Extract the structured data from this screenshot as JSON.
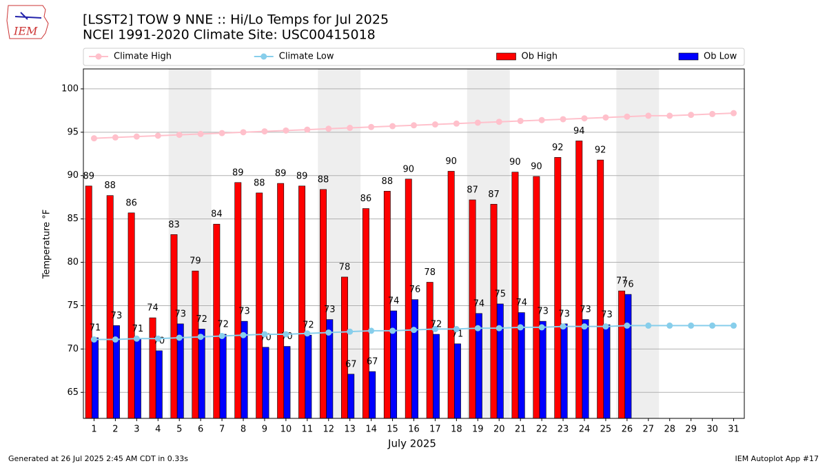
{
  "chart_data": {
    "type": "bar",
    "title": "[LSST2] TOW 9 NNE :: Hi/Lo Temps for Jul 2025",
    "subtitle": "NCEI 1991-2020 Climate Site: USC00415018",
    "logo": "IEM",
    "x_label": "July 2025",
    "y_label": "Temperature °F",
    "footer_left": "Generated at 26 Jul 2025 2:45 AM CDT in 0.33s",
    "footer_right": "IEM Autoplot App #17",
    "x": [
      1,
      2,
      3,
      4,
      5,
      6,
      7,
      8,
      9,
      10,
      11,
      12,
      13,
      14,
      15,
      16,
      17,
      18,
      19,
      20,
      21,
      22,
      23,
      24,
      25,
      26,
      27,
      28,
      29,
      30,
      31
    ],
    "xlim": [
      0.5,
      31.5
    ],
    "xticks": [
      1,
      2,
      3,
      4,
      5,
      6,
      7,
      8,
      9,
      10,
      11,
      12,
      13,
      14,
      15,
      16,
      17,
      18,
      19,
      20,
      21,
      22,
      23,
      24,
      25,
      26,
      27,
      28,
      29,
      30,
      31
    ],
    "ylim": [
      62,
      102.3
    ],
    "yticks": [
      65,
      70,
      75,
      80,
      85,
      90,
      95,
      100
    ],
    "grid": true,
    "legend": "top",
    "shaded_spans": [
      [
        5,
        6
      ],
      [
        12,
        13
      ],
      [
        19,
        20
      ],
      [
        26,
        27
      ]
    ],
    "series": [
      {
        "name": "Climate High",
        "type": "line",
        "color": "#ffc0cb",
        "values": [
          94.3,
          94.4,
          94.5,
          94.6,
          94.7,
          94.8,
          94.9,
          95.0,
          95.1,
          95.2,
          95.3,
          95.4,
          95.5,
          95.6,
          95.7,
          95.8,
          95.9,
          96.0,
          96.1,
          96.2,
          96.3,
          96.4,
          96.5,
          96.6,
          96.7,
          96.8,
          96.9,
          96.9,
          97.0,
          97.1,
          97.2
        ]
      },
      {
        "name": "Climate Low",
        "type": "line",
        "color": "#87ceeb",
        "values": [
          71.1,
          71.1,
          71.2,
          71.2,
          71.3,
          71.4,
          71.5,
          71.6,
          71.7,
          71.7,
          71.8,
          71.9,
          72.0,
          72.1,
          72.1,
          72.2,
          72.3,
          72.3,
          72.4,
          72.4,
          72.5,
          72.5,
          72.6,
          72.6,
          72.6,
          72.7,
          72.7,
          72.7,
          72.7,
          72.7,
          72.7
        ]
      },
      {
        "name": "Ob High",
        "type": "bar",
        "color": "#ff0000",
        "values": [
          88.8,
          87.7,
          85.7,
          73.6,
          83.2,
          79.0,
          84.4,
          89.2,
          88.0,
          89.1,
          88.8,
          88.4,
          78.3,
          86.2,
          88.2,
          89.6,
          77.7,
          90.5,
          87.2,
          86.7,
          90.4,
          89.9,
          92.1,
          94.0,
          91.8,
          76.7,
          null,
          null,
          null,
          null,
          null
        ],
        "value_labels": [
          "89",
          "88",
          "86",
          "74",
          "83",
          "79",
          "84",
          "89",
          "88",
          "89",
          "89",
          "88",
          "78",
          "86",
          "88",
          "90",
          "78",
          "90",
          "87",
          "87",
          "90",
          "90",
          "92",
          "94",
          "92",
          "77",
          null,
          null,
          null,
          null,
          null
        ]
      },
      {
        "name": "Ob Low",
        "type": "bar",
        "color": "#0000ff",
        "values": [
          71.3,
          72.7,
          71.2,
          69.8,
          72.9,
          72.3,
          71.7,
          73.2,
          70.2,
          70.3,
          71.6,
          73.4,
          67.1,
          67.4,
          74.4,
          75.7,
          71.7,
          70.6,
          74.1,
          75.2,
          74.2,
          73.2,
          72.9,
          73.4,
          72.8,
          76.3,
          null,
          null,
          null,
          null,
          null
        ],
        "value_labels": [
          "71",
          "73",
          "71",
          "70",
          "73",
          "72",
          "72",
          "73",
          "70",
          "70",
          "72",
          "73",
          "67",
          "67",
          "74",
          "76",
          "72",
          "71",
          "74",
          "75",
          "74",
          "73",
          "73",
          "73",
          "73",
          "76",
          null,
          null,
          null,
          null,
          null
        ]
      }
    ]
  }
}
